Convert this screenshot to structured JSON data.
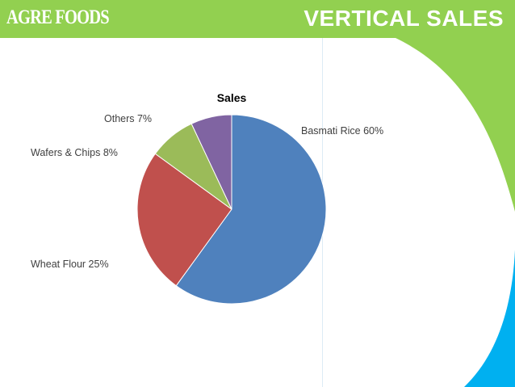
{
  "header": {
    "brand": "AGRE FOODS",
    "title": "VERTICAL SALES"
  },
  "colors": {
    "header_green": "#92d050",
    "accent_blue": "#00b0f0"
  },
  "chart_data": {
    "type": "pie",
    "title": "Sales",
    "slices": [
      {
        "name": "Basmati Rice",
        "value": 60,
        "label": "Basmati Rice 60%",
        "color": "#4f81bd"
      },
      {
        "name": "Wheat Flour",
        "value": 25,
        "label": "Wheat Flour 25%",
        "color": "#c0504d"
      },
      {
        "name": "Wafers & Chips",
        "value": 8,
        "label": "Wafers & Chips 8%",
        "color": "#9bbb59"
      },
      {
        "name": "Others",
        "value": 7,
        "label": "Others 7%",
        "color": "#8064a2"
      }
    ],
    "start_angle": "12 o'clock",
    "direction": "clockwise"
  }
}
